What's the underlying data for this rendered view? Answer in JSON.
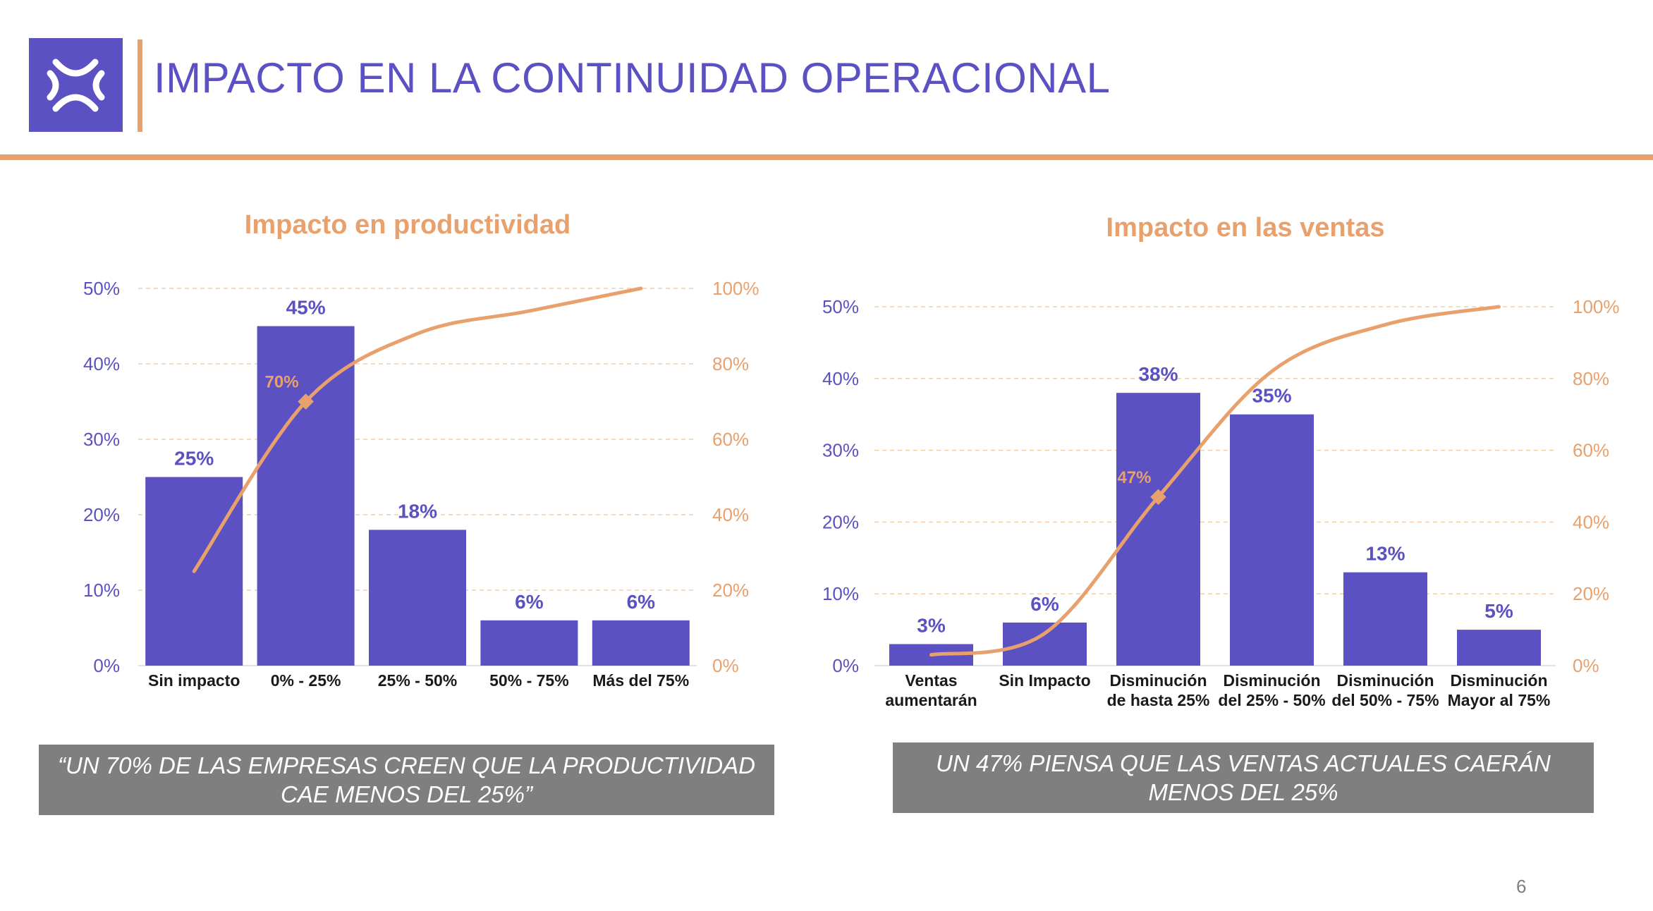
{
  "header": {
    "title": "IMPACTO EN LA CONTINUIDAD OPERACIONAL",
    "logo_icon": "brand-logo-icon"
  },
  "colors": {
    "accent": "#e8a06c",
    "bar": "#5b51c2",
    "left_axis_label": "#5b51c2",
    "right_axis_label": "#e8a06c",
    "quote_box": "#7f7f7f"
  },
  "chart_data": [
    {
      "type": "bar",
      "title": "Impacto en productividad",
      "categories": [
        [
          "Sin impacto"
        ],
        [
          "0% - 25%"
        ],
        [
          "25% - 50%"
        ],
        [
          "50% - 75%"
        ],
        [
          "Más del 75%"
        ]
      ],
      "values": [
        25,
        45,
        18,
        6,
        6
      ],
      "value_labels": [
        "25%",
        "45%",
        "18%",
        "6%",
        "6%"
      ],
      "y_ticks": [
        "0%",
        "10%",
        "20%",
        "30%",
        "40%",
        "50%"
      ],
      "ylim": [
        0,
        50
      ],
      "y2_ticks": [
        "0%",
        "20%",
        "40%",
        "60%",
        "80%",
        "100%"
      ],
      "y2lim": [
        0,
        100
      ],
      "cumulative": [
        25,
        70,
        88,
        94,
        100
      ],
      "marker": {
        "index": 1,
        "value": 70,
        "label": "70%"
      },
      "grid": true,
      "quote": "“UN 70% DE LAS EMPRESAS CREEN QUE LA PRODUCTIVIDAD CAE MENOS DEL 25%”"
    },
    {
      "type": "bar",
      "title": "Impacto en las ventas",
      "categories": [
        [
          "Ventas",
          "aumentarán"
        ],
        [
          "Sin Impacto"
        ],
        [
          "Disminución",
          "de hasta 25%"
        ],
        [
          "Disminución",
          "del 25% - 50%"
        ],
        [
          "Disminución",
          "del 50% - 75%"
        ],
        [
          "Disminución",
          "Mayor al 75%"
        ]
      ],
      "values": [
        3,
        6,
        38,
        35,
        13,
        5
      ],
      "value_labels": [
        "3%",
        "6%",
        "38%",
        "35%",
        "13%",
        "5%"
      ],
      "y_ticks": [
        "0%",
        "10%",
        "20%",
        "30%",
        "40%",
        "50%"
      ],
      "ylim": [
        0,
        50
      ],
      "y2_ticks": [
        "0%",
        "20%",
        "40%",
        "60%",
        "80%",
        "100%"
      ],
      "y2lim": [
        0,
        100
      ],
      "cumulative": [
        3,
        9,
        47,
        82,
        95,
        100
      ],
      "marker": {
        "index": 2,
        "value": 47,
        "label": "47%"
      },
      "grid": true,
      "quote": "UN 47% PIENSA QUE LAS VENTAS ACTUALES CAERÁN MENOS DEL 25%"
    }
  ],
  "footer": {
    "page_number": "6"
  }
}
